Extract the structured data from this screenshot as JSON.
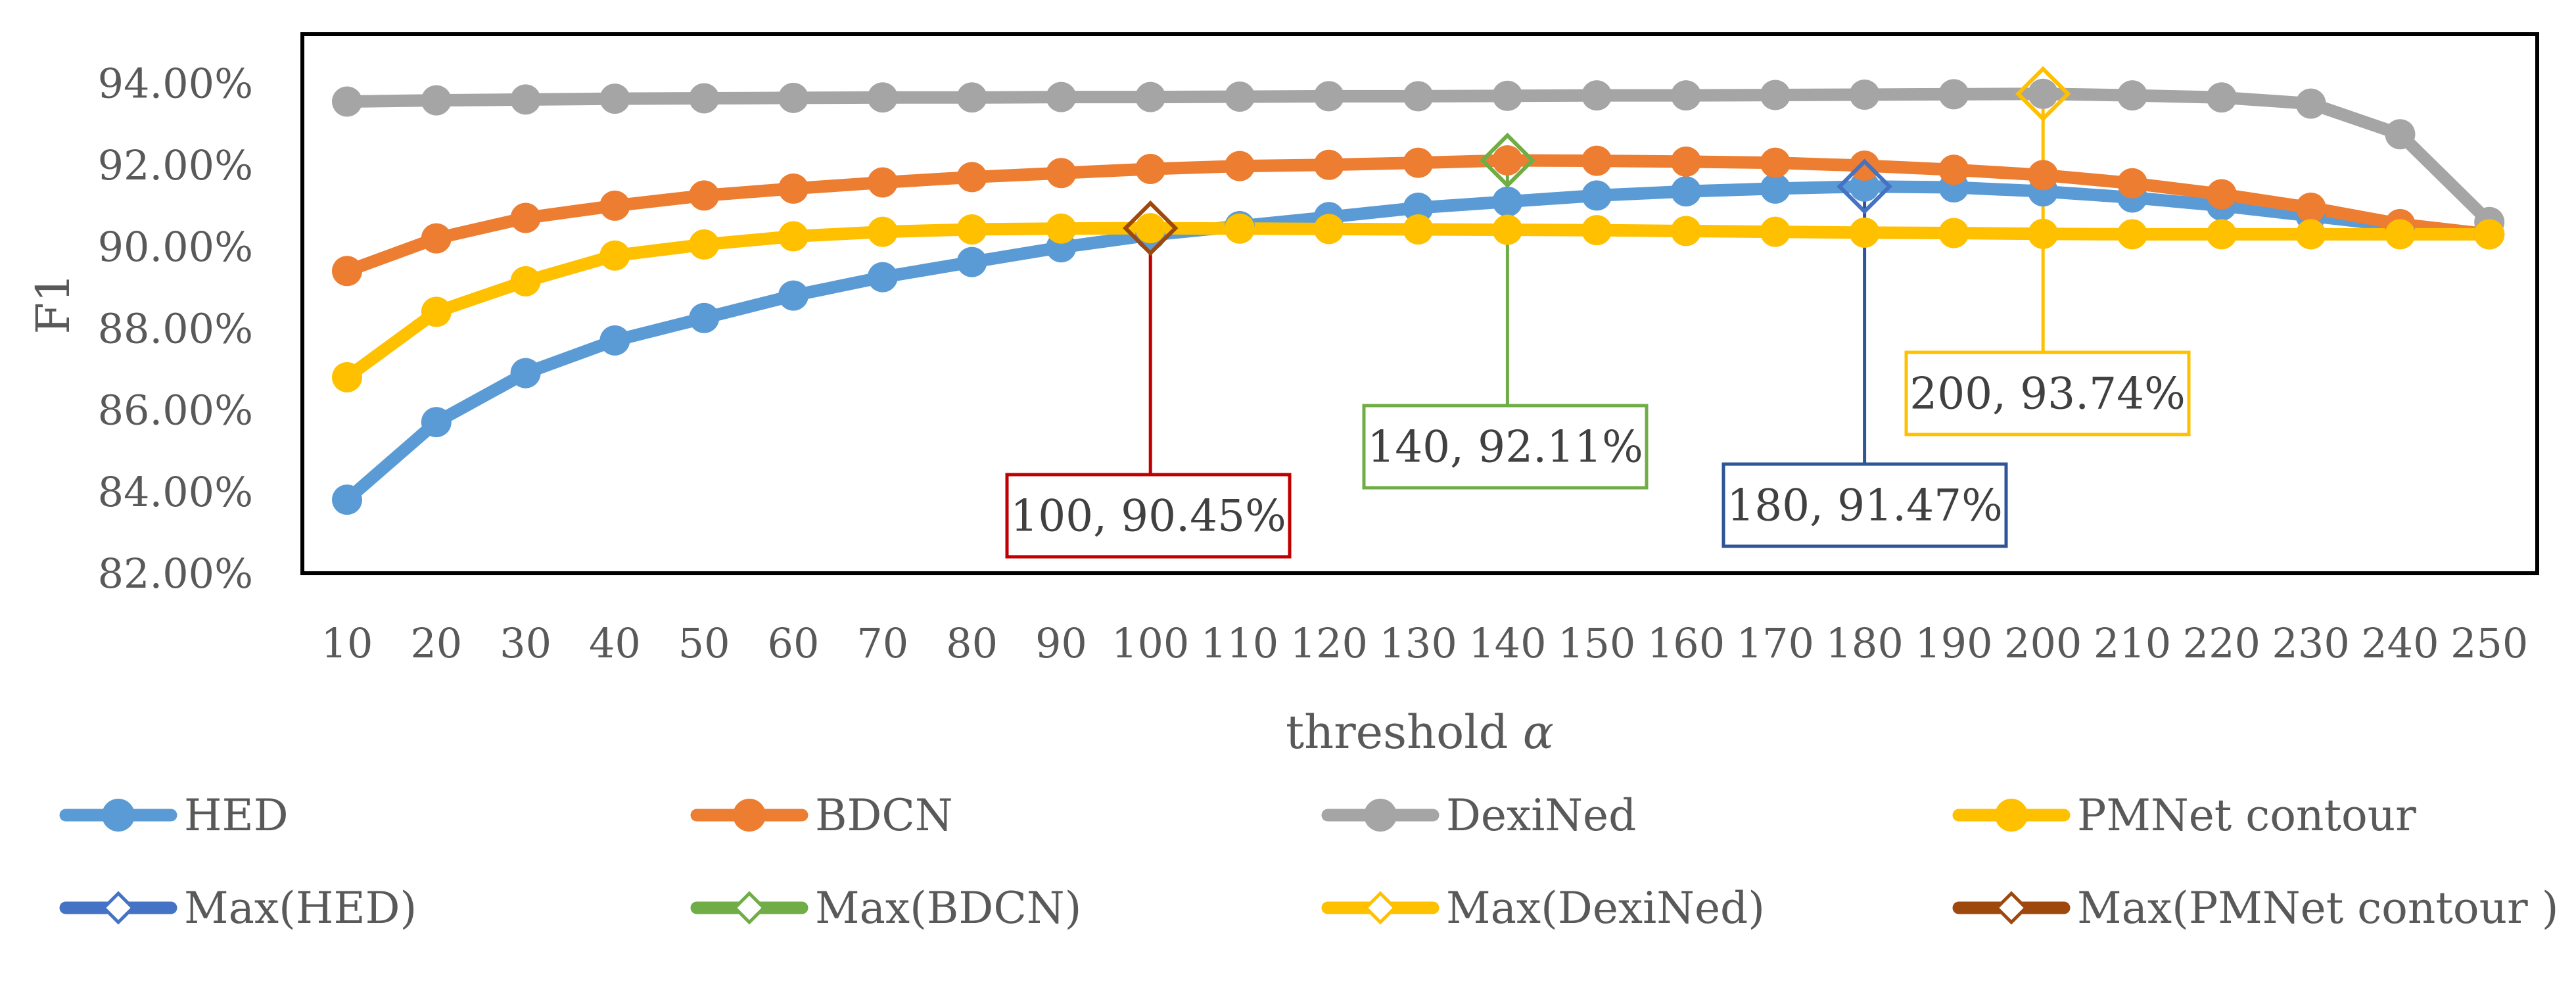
{
  "chart_data": {
    "type": "line",
    "title": "",
    "xlabel": "threshold α",
    "xlabel_text": "threshold ",
    "xlabel_symbol": "α",
    "ylabel": "F1",
    "x": [
      10,
      20,
      30,
      40,
      50,
      60,
      70,
      80,
      90,
      100,
      110,
      120,
      130,
      140,
      150,
      160,
      170,
      180,
      190,
      200,
      210,
      220,
      230,
      240,
      250
    ],
    "ylim": [
      82,
      95.2
    ],
    "yticks": [
      82,
      84,
      86,
      88,
      90,
      92,
      94
    ],
    "ytick_labels": [
      "82.00%",
      "84.00%",
      "86.00%",
      "88.00%",
      "90.00%",
      "92.00%",
      "94.00%"
    ],
    "series": [
      {
        "name": "HED",
        "color": "#5B9BD5",
        "values": [
          83.8,
          85.7,
          86.9,
          87.7,
          88.25,
          88.8,
          89.25,
          89.62,
          89.98,
          90.28,
          90.5,
          90.72,
          90.95,
          91.1,
          91.25,
          91.35,
          91.42,
          91.47,
          91.45,
          91.35,
          91.2,
          91.0,
          90.75,
          90.5,
          90.3
        ]
      },
      {
        "name": "BDCN",
        "color": "#ED7D31",
        "values": [
          89.4,
          90.2,
          90.7,
          91.0,
          91.25,
          91.42,
          91.57,
          91.7,
          91.8,
          91.9,
          91.97,
          92.0,
          92.05,
          92.11,
          92.1,
          92.08,
          92.05,
          91.98,
          91.88,
          91.75,
          91.55,
          91.28,
          90.95,
          90.55,
          90.3
        ]
      },
      {
        "name": "DexiNed",
        "color": "#A5A5A5",
        "values": [
          93.55,
          93.58,
          93.6,
          93.62,
          93.63,
          93.64,
          93.65,
          93.65,
          93.66,
          93.66,
          93.67,
          93.68,
          93.68,
          93.69,
          93.7,
          93.7,
          93.71,
          93.72,
          93.73,
          93.74,
          93.7,
          93.65,
          93.5,
          92.75,
          90.6
        ]
      },
      {
        "name": "PMNet contour",
        "color": "#FFC000",
        "values": [
          86.8,
          88.4,
          89.15,
          89.78,
          90.05,
          90.25,
          90.36,
          90.42,
          90.44,
          90.45,
          90.44,
          90.43,
          90.42,
          90.41,
          90.4,
          90.38,
          90.36,
          90.34,
          90.33,
          90.31,
          90.3,
          90.3,
          90.3,
          90.3,
          90.3
        ]
      }
    ],
    "max_markers": [
      {
        "name": "Max(HED)",
        "color": "#4472C4",
        "x": 180,
        "y": 91.47,
        "label": "180, 91.47%"
      },
      {
        "name": "Max(BDCN)",
        "color": "#70AD47",
        "x": 140,
        "y": 92.11,
        "label": "140, 92.11%"
      },
      {
        "name": "Max(DexiNed)",
        "color": "#FFC000",
        "x": 200,
        "y": 93.74,
        "label": "200, 93.74%"
      },
      {
        "name": "Max(PMNet contour )",
        "color": "#9E480E",
        "x": 100,
        "y": 90.45,
        "label": "100, 90.45%"
      }
    ],
    "callouts": [
      {
        "marker": "Max(PMNet contour )",
        "label": "100, 90.45%",
        "border": "#C00000"
      },
      {
        "marker": "Max(BDCN)",
        "label": "140, 92.11%",
        "border": "#70AD47"
      },
      {
        "marker": "Max(HED)",
        "label": "180, 91.47%",
        "border": "#2F5597"
      },
      {
        "marker": "Max(DexiNed)",
        "label": "200, 93.74%",
        "border": "#FFC000"
      }
    ],
    "legend": {
      "position": "bottom",
      "rows": [
        [
          "HED",
          "BDCN",
          "DexiNed",
          "PMNet contour"
        ],
        [
          "Max(HED)",
          "Max(BDCN)",
          "Max(DexiNed)",
          "Max(PMNet contour )"
        ]
      ]
    },
    "grid": false
  }
}
